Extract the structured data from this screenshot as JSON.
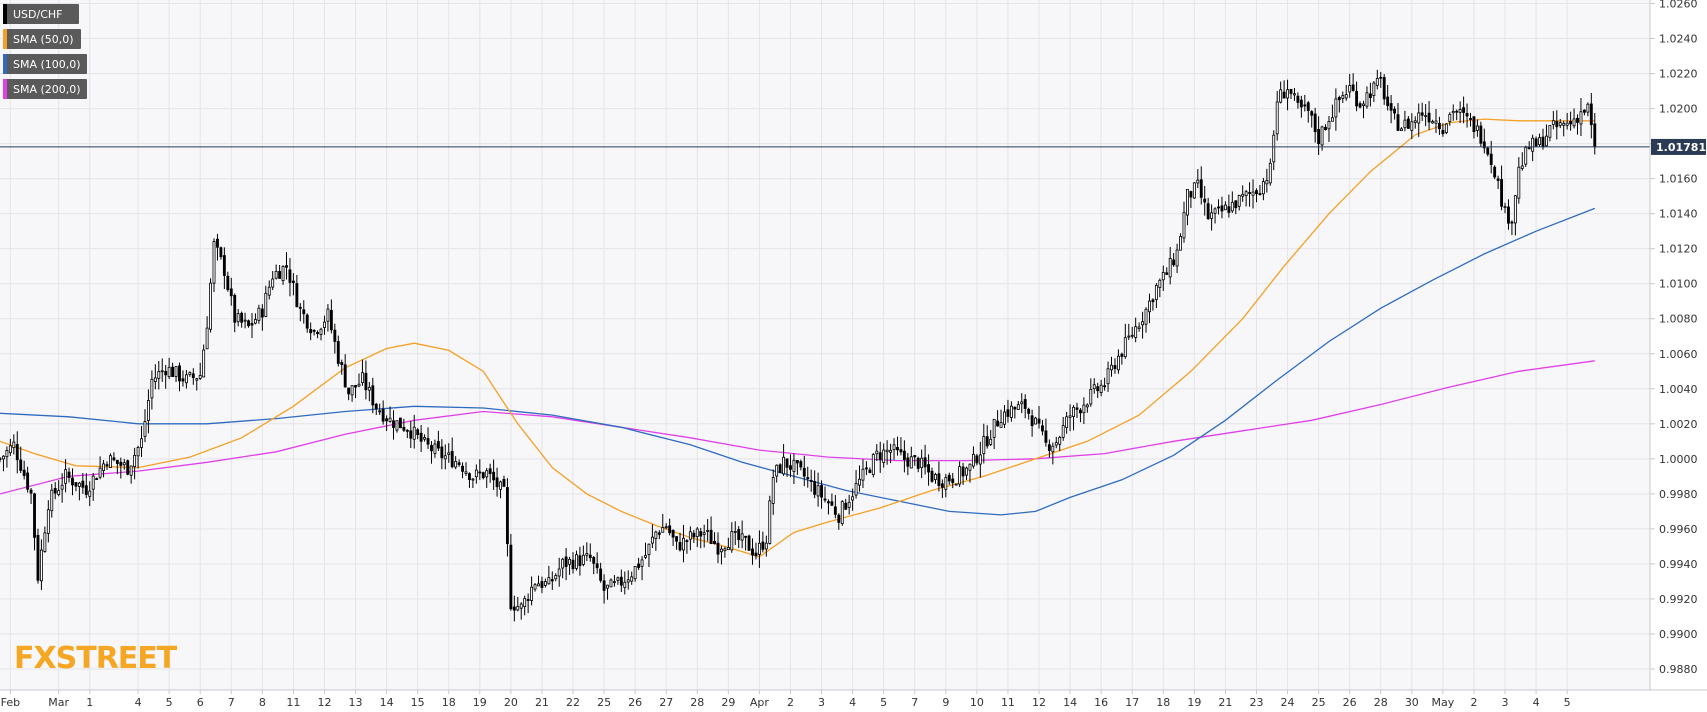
{
  "colors": {
    "background": "#ffffff",
    "plot_background": "#f7f7f9",
    "grid": "#e4e4ea",
    "candle": "#000000",
    "price_line": "#2b3a55",
    "legend_bg": "#5a5a5a",
    "sma50": "#f5a024",
    "sma100": "#2f6bbf",
    "sma200": "#e040e8",
    "brand": "#f5a623"
  },
  "brand": "FXSTREET",
  "chart_data": {
    "type": "candlestick",
    "symbol": "USD/CHF",
    "legend": [
      {
        "label": "USD/CHF",
        "color": "#000000"
      },
      {
        "label": "SMA (50,0)",
        "color": "#f5a024"
      },
      {
        "label": "SMA (100,0)",
        "color": "#2f6bbf"
      },
      {
        "label": "SMA (200,0)",
        "color": "#e040e8"
      }
    ],
    "last_price": 1.01781,
    "last_price_label": "1.01781",
    "ylim": [
      0.9868,
      1.0262
    ],
    "y_ticks": [
      "1.0260",
      "1.0240",
      "1.0220",
      "1.0200",
      "1.0180",
      "1.0160",
      "1.0140",
      "1.0120",
      "1.0100",
      "1.0080",
      "1.0060",
      "1.0040",
      "1.0020",
      "1.0000",
      "0.9980",
      "0.9960",
      "0.9940",
      "0.9920",
      "0.9900",
      "0.9880"
    ],
    "x_range_bars": [
      0,
      478
    ],
    "x_ticks": [
      {
        "label": "Feb",
        "bar": 3
      },
      {
        "label": "Mar",
        "bar": 17
      },
      {
        "label": "1",
        "bar": 26
      },
      {
        "label": "4",
        "bar": 40
      },
      {
        "label": "5",
        "bar": 49
      },
      {
        "label": "6",
        "bar": 58
      },
      {
        "label": "7",
        "bar": 67
      },
      {
        "label": "8",
        "bar": 76
      },
      {
        "label": "11",
        "bar": 85
      },
      {
        "label": "12",
        "bar": 94
      },
      {
        "label": "13",
        "bar": 103
      },
      {
        "label": "14",
        "bar": 112
      },
      {
        "label": "15",
        "bar": 121
      },
      {
        "label": "18",
        "bar": 130
      },
      {
        "label": "19",
        "bar": 139
      },
      {
        "label": "20",
        "bar": 148
      },
      {
        "label": "21",
        "bar": 157
      },
      {
        "label": "22",
        "bar": 166
      },
      {
        "label": "25",
        "bar": 175
      },
      {
        "label": "26",
        "bar": 184
      },
      {
        "label": "27",
        "bar": 193
      },
      {
        "label": "28",
        "bar": 202
      },
      {
        "label": "29",
        "bar": 211
      },
      {
        "label": "Apr",
        "bar": 220
      },
      {
        "label": "2",
        "bar": 229
      },
      {
        "label": "3",
        "bar": 238
      },
      {
        "label": "4",
        "bar": 247
      },
      {
        "label": "5",
        "bar": 256
      },
      {
        "label": "7",
        "bar": 265
      },
      {
        "label": "9",
        "bar": 274
      },
      {
        "label": "10",
        "bar": 283
      },
      {
        "label": "11",
        "bar": 292
      },
      {
        "label": "12",
        "bar": 301
      },
      {
        "label": "14",
        "bar": 310
      },
      {
        "label": "16",
        "bar": 319
      },
      {
        "label": "17",
        "bar": 328
      },
      {
        "label": "18",
        "bar": 337
      },
      {
        "label": "19",
        "bar": 346
      },
      {
        "label": "21",
        "bar": 355
      },
      {
        "label": "23",
        "bar": 364
      },
      {
        "label": "24",
        "bar": 373
      },
      {
        "label": "25",
        "bar": 382
      },
      {
        "label": "26",
        "bar": 391
      },
      {
        "label": "28",
        "bar": 400
      },
      {
        "label": "30",
        "bar": 409
      },
      {
        "label": "May",
        "bar": 418
      },
      {
        "label": "2",
        "bar": 427
      },
      {
        "label": "3",
        "bar": 436
      },
      {
        "label": "4",
        "bar": 445
      },
      {
        "label": "5",
        "bar": 454
      }
    ],
    "close_anchors": [
      {
        "bar": 0,
        "value": 1.0
      },
      {
        "bar": 4,
        "value": 1.0008
      },
      {
        "bar": 9,
        "value": 0.998
      },
      {
        "bar": 11,
        "value": 0.9933
      },
      {
        "bar": 14,
        "value": 0.9975
      },
      {
        "bar": 19,
        "value": 0.999
      },
      {
        "bar": 25,
        "value": 0.9983
      },
      {
        "bar": 31,
        "value": 1.0
      },
      {
        "bar": 37,
        "value": 0.9995
      },
      {
        "bar": 41,
        "value": 1.001
      },
      {
        "bar": 44,
        "value": 1.0045
      },
      {
        "bar": 48,
        "value": 1.0052
      },
      {
        "bar": 54,
        "value": 1.0045
      },
      {
        "bar": 58,
        "value": 1.0048
      },
      {
        "bar": 60,
        "value": 1.0078
      },
      {
        "bar": 62,
        "value": 1.0122
      },
      {
        "bar": 65,
        "value": 1.0108
      },
      {
        "bar": 68,
        "value": 1.008
      },
      {
        "bar": 72,
        "value": 1.0075
      },
      {
        "bar": 76,
        "value": 1.0085
      },
      {
        "bar": 79,
        "value": 1.0105
      },
      {
        "bar": 83,
        "value": 1.011
      },
      {
        "bar": 87,
        "value": 1.0085
      },
      {
        "bar": 91,
        "value": 1.0073
      },
      {
        "bar": 95,
        "value": 1.0082
      },
      {
        "bar": 98,
        "value": 1.0058
      },
      {
        "bar": 101,
        "value": 1.0038
      },
      {
        "bar": 105,
        "value": 1.0045
      },
      {
        "bar": 109,
        "value": 1.003
      },
      {
        "bar": 113,
        "value": 1.0022
      },
      {
        "bar": 118,
        "value": 1.0018
      },
      {
        "bar": 123,
        "value": 1.0008
      },
      {
        "bar": 128,
        "value": 1.0002
      },
      {
        "bar": 133,
        "value": 0.9998
      },
      {
        "bar": 137,
        "value": 0.999
      },
      {
        "bar": 141,
        "value": 0.9992
      },
      {
        "bar": 144,
        "value": 0.9985
      },
      {
        "bar": 146,
        "value": 0.998
      },
      {
        "bar": 148,
        "value": 0.9918
      },
      {
        "bar": 151,
        "value": 0.9915
      },
      {
        "bar": 155,
        "value": 0.993
      },
      {
        "bar": 159,
        "value": 0.9928
      },
      {
        "bar": 163,
        "value": 0.994
      },
      {
        "bar": 167,
        "value": 0.9942
      },
      {
        "bar": 171,
        "value": 0.9943
      },
      {
        "bar": 175,
        "value": 0.9925
      },
      {
        "bar": 179,
        "value": 0.9928
      },
      {
        "bar": 183,
        "value": 0.9935
      },
      {
        "bar": 187,
        "value": 0.9945
      },
      {
        "bar": 190,
        "value": 0.9958
      },
      {
        "bar": 193,
        "value": 0.9962
      },
      {
        "bar": 196,
        "value": 0.995
      },
      {
        "bar": 200,
        "value": 0.9955
      },
      {
        "bar": 204,
        "value": 0.9958
      },
      {
        "bar": 208,
        "value": 0.995
      },
      {
        "bar": 212,
        "value": 0.9955
      },
      {
        "bar": 216,
        "value": 0.9952
      },
      {
        "bar": 219,
        "value": 0.9946
      },
      {
        "bar": 222,
        "value": 0.9955
      },
      {
        "bar": 224,
        "value": 0.999
      },
      {
        "bar": 227,
        "value": 0.9998
      },
      {
        "bar": 230,
        "value": 0.9995
      },
      {
        "bar": 233,
        "value": 0.999
      },
      {
        "bar": 236,
        "value": 0.9983
      },
      {
        "bar": 240,
        "value": 0.9975
      },
      {
        "bar": 243,
        "value": 0.9968
      },
      {
        "bar": 246,
        "value": 0.9978
      },
      {
        "bar": 250,
        "value": 0.999
      },
      {
        "bar": 254,
        "value": 1.0002
      },
      {
        "bar": 258,
        "value": 1.0005
      },
      {
        "bar": 262,
        "value": 1.0
      },
      {
        "bar": 266,
        "value": 0.9998
      },
      {
        "bar": 270,
        "value": 0.999
      },
      {
        "bar": 273,
        "value": 0.9988
      },
      {
        "bar": 277,
        "value": 0.999
      },
      {
        "bar": 281,
        "value": 0.9995
      },
      {
        "bar": 284,
        "value": 1.0005
      },
      {
        "bar": 287,
        "value": 1.0015
      },
      {
        "bar": 290,
        "value": 1.0025
      },
      {
        "bar": 293,
        "value": 1.0028
      },
      {
        "bar": 297,
        "value": 1.003
      },
      {
        "bar": 300,
        "value": 1.002
      },
      {
        "bar": 303,
        "value": 1.0008
      },
      {
        "bar": 306,
        "value": 1.001
      },
      {
        "bar": 310,
        "value": 1.0025
      },
      {
        "bar": 313,
        "value": 1.003
      },
      {
        "bar": 317,
        "value": 1.0038
      },
      {
        "bar": 320,
        "value": 1.0043
      },
      {
        "bar": 323,
        "value": 1.0055
      },
      {
        "bar": 326,
        "value": 1.0065
      },
      {
        "bar": 329,
        "value": 1.0075
      },
      {
        "bar": 332,
        "value": 1.0085
      },
      {
        "bar": 335,
        "value": 1.0098
      },
      {
        "bar": 338,
        "value": 1.0106
      },
      {
        "bar": 341,
        "value": 1.0118
      },
      {
        "bar": 344,
        "value": 1.015
      },
      {
        "bar": 347,
        "value": 1.0155
      },
      {
        "bar": 350,
        "value": 1.0138
      },
      {
        "bar": 353,
        "value": 1.014
      },
      {
        "bar": 357,
        "value": 1.0145
      },
      {
        "bar": 361,
        "value": 1.015
      },
      {
        "bar": 365,
        "value": 1.0155
      },
      {
        "bar": 368,
        "value": 1.0165
      },
      {
        "bar": 370,
        "value": 1.0205
      },
      {
        "bar": 373,
        "value": 1.0212
      },
      {
        "bar": 376,
        "value": 1.02
      },
      {
        "bar": 379,
        "value": 1.0198
      },
      {
        "bar": 382,
        "value": 1.0183
      },
      {
        "bar": 385,
        "value": 1.0195
      },
      {
        "bar": 388,
        "value": 1.0205
      },
      {
        "bar": 391,
        "value": 1.0212
      },
      {
        "bar": 394,
        "value": 1.0203
      },
      {
        "bar": 397,
        "value": 1.021
      },
      {
        "bar": 400,
        "value": 1.0215
      },
      {
        "bar": 403,
        "value": 1.0195
      },
      {
        "bar": 406,
        "value": 1.019
      },
      {
        "bar": 409,
        "value": 1.0192
      },
      {
        "bar": 412,
        "value": 1.0198
      },
      {
        "bar": 415,
        "value": 1.0195
      },
      {
        "bar": 418,
        "value": 1.019
      },
      {
        "bar": 421,
        "value": 1.02
      },
      {
        "bar": 424,
        "value": 1.0195
      },
      {
        "bar": 427,
        "value": 1.019
      },
      {
        "bar": 430,
        "value": 1.0182
      },
      {
        "bar": 433,
        "value": 1.0165
      },
      {
        "bar": 436,
        "value": 1.014
      },
      {
        "bar": 438,
        "value": 1.0138
      },
      {
        "bar": 440,
        "value": 1.0165
      },
      {
        "bar": 443,
        "value": 1.0178
      },
      {
        "bar": 446,
        "value": 1.018
      },
      {
        "bar": 449,
        "value": 1.0188
      },
      {
        "bar": 452,
        "value": 1.019
      },
      {
        "bar": 455,
        "value": 1.0192
      },
      {
        "bar": 458,
        "value": 1.0198
      },
      {
        "bar": 460,
        "value": 1.02
      },
      {
        "bar": 462,
        "value": 1.0178
      }
    ],
    "sma50_points": [
      [
        0,
        1.001
      ],
      [
        10,
        1.0003
      ],
      [
        22,
        0.9996
      ],
      [
        40,
        0.9995
      ],
      [
        55,
        1.0001
      ],
      [
        70,
        1.0012
      ],
      [
        85,
        1.003
      ],
      [
        100,
        1.0052
      ],
      [
        112,
        1.0063
      ],
      [
        120,
        1.0066
      ],
      [
        130,
        1.0062
      ],
      [
        140,
        1.005
      ],
      [
        150,
        1.002
      ],
      [
        160,
        0.9995
      ],
      [
        170,
        0.998
      ],
      [
        180,
        0.997
      ],
      [
        190,
        0.9962
      ],
      [
        200,
        0.9955
      ],
      [
        210,
        0.995
      ],
      [
        220,
        0.9944
      ],
      [
        230,
        0.9958
      ],
      [
        240,
        0.9964
      ],
      [
        255,
        0.9972
      ],
      [
        270,
        0.9982
      ],
      [
        285,
        0.999
      ],
      [
        300,
        1.0
      ],
      [
        315,
        1.001
      ],
      [
        330,
        1.0025
      ],
      [
        345,
        1.005
      ],
      [
        360,
        1.008
      ],
      [
        372,
        1.011
      ],
      [
        385,
        1.014
      ],
      [
        397,
        1.0164
      ],
      [
        410,
        1.0185
      ],
      [
        420,
        1.0192
      ],
      [
        430,
        1.0194
      ],
      [
        440,
        1.0193
      ],
      [
        452,
        1.0193
      ],
      [
        462,
        1.0193
      ]
    ],
    "sma100_points": [
      [
        0,
        1.0026
      ],
      [
        20,
        1.0024
      ],
      [
        40,
        1.002
      ],
      [
        60,
        1.002
      ],
      [
        80,
        1.0023
      ],
      [
        100,
        1.0027
      ],
      [
        120,
        1.003
      ],
      [
        140,
        1.0029
      ],
      [
        160,
        1.0025
      ],
      [
        180,
        1.0018
      ],
      [
        200,
        1.0008
      ],
      [
        215,
        0.9998
      ],
      [
        230,
        0.999
      ],
      [
        245,
        0.9982
      ],
      [
        260,
        0.9976
      ],
      [
        275,
        0.997
      ],
      [
        290,
        0.9968
      ],
      [
        300,
        0.997
      ],
      [
        310,
        0.9978
      ],
      [
        325,
        0.9988
      ],
      [
        340,
        1.0002
      ],
      [
        355,
        1.0022
      ],
      [
        370,
        1.0045
      ],
      [
        385,
        1.0067
      ],
      [
        400,
        1.0086
      ],
      [
        415,
        1.0102
      ],
      [
        430,
        1.0117
      ],
      [
        445,
        1.013
      ],
      [
        462,
        1.0143
      ]
    ],
    "sma200_points": [
      [
        0,
        0.998
      ],
      [
        20,
        0.999
      ],
      [
        40,
        0.9993
      ],
      [
        60,
        0.9998
      ],
      [
        80,
        1.0004
      ],
      [
        100,
        1.0014
      ],
      [
        120,
        1.0022
      ],
      [
        140,
        1.0027
      ],
      [
        160,
        1.0024
      ],
      [
        180,
        1.0018
      ],
      [
        200,
        1.0012
      ],
      [
        220,
        1.0005
      ],
      [
        240,
        1.0001
      ],
      [
        260,
        0.9999
      ],
      [
        280,
        0.9999
      ],
      [
        300,
        1.0
      ],
      [
        320,
        1.0003
      ],
      [
        340,
        1.001
      ],
      [
        360,
        1.0016
      ],
      [
        380,
        1.0022
      ],
      [
        400,
        1.0031
      ],
      [
        420,
        1.0041
      ],
      [
        440,
        1.005
      ],
      [
        462,
        1.0056
      ]
    ],
    "grid": true,
    "legend_position": "top-left"
  }
}
